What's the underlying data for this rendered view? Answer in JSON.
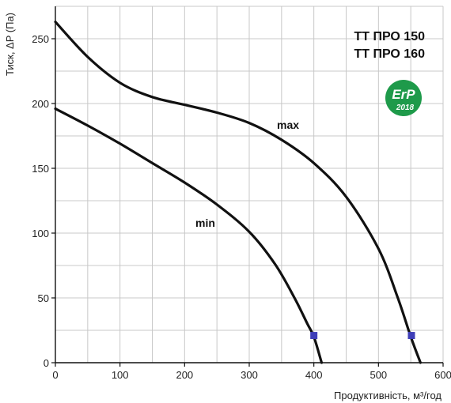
{
  "chart_data": {
    "type": "line",
    "titles": [
      "TT ПРО 150",
      "TT ПРО 160"
    ],
    "xlabel": "Продуктивність, м³/год",
    "ylabel": "Тиск, ΔP (Па)",
    "xlim": [
      0,
      600
    ],
    "ylim": [
      0,
      275
    ],
    "xticks": [
      0,
      100,
      200,
      300,
      400,
      500,
      600
    ],
    "yticks": [
      0,
      50,
      100,
      150,
      200,
      250
    ],
    "x_tick_labels": [
      "0",
      "100",
      "200",
      "300",
      "400",
      "500",
      "600"
    ],
    "y_tick_labels": [
      "0",
      "50",
      "100",
      "150",
      "200",
      "250"
    ],
    "grid": true,
    "series": [
      {
        "name": "max",
        "color": "#111111",
        "x": [
          0,
          50,
          100,
          150,
          200,
          250,
          300,
          350,
          400,
          450,
          500,
          530,
          550,
          565
        ],
        "y": [
          263,
          236,
          216,
          205,
          199,
          193,
          185,
          172,
          154,
          128,
          88,
          50,
          20,
          0
        ]
      },
      {
        "name": "min",
        "color": "#111111",
        "x": [
          0,
          50,
          100,
          150,
          200,
          250,
          300,
          340,
          370,
          390,
          400,
          412
        ],
        "y": [
          196,
          183,
          169,
          154,
          139,
          122,
          101,
          76,
          50,
          30,
          20,
          0
        ]
      }
    ],
    "markers": [
      {
        "x": 400,
        "y": 21,
        "color": "#3f3fb8"
      },
      {
        "x": 551,
        "y": 21,
        "color": "#3f3fb8"
      }
    ],
    "annotations": [
      {
        "text": "max",
        "x": 355,
        "y": 178
      },
      {
        "text": "min",
        "x": 217,
        "y": 106
      }
    ],
    "logo": {
      "line1": "ErP",
      "line2": "2018",
      "color": "#1e9a4a"
    }
  }
}
